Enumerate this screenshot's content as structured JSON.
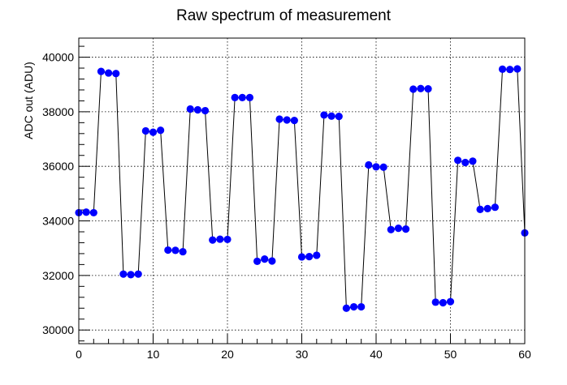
{
  "chart_data": {
    "type": "line",
    "title": "Raw spectrum of measurement",
    "xlabel": "",
    "ylabel": "ADC out (ADU)",
    "xlim": [
      0,
      60
    ],
    "ylim": [
      29500,
      40700
    ],
    "x_ticks": [
      "0",
      "10",
      "20",
      "30",
      "40",
      "50",
      "60"
    ],
    "y_ticks": [
      "30000",
      "32000",
      "34000",
      "36000",
      "38000",
      "40000"
    ],
    "grid": true,
    "marker_color": "#0000ff",
    "line_color": "#000000",
    "series": [
      {
        "x": [
          0,
          1,
          2,
          3,
          4,
          5,
          6,
          7,
          8,
          9,
          10,
          11,
          12,
          13,
          14,
          15,
          16,
          17,
          18,
          19,
          20,
          21,
          22,
          23,
          24,
          25,
          26,
          27,
          28,
          29,
          30,
          31,
          32,
          33,
          34,
          35,
          36,
          37,
          38,
          39,
          40,
          41,
          42,
          43,
          44,
          45,
          46,
          47,
          48,
          49,
          50,
          51,
          52,
          53,
          54,
          55,
          56,
          57,
          58,
          59,
          60
        ],
        "values": [
          34300,
          34320,
          34300,
          39480,
          39420,
          39400,
          32050,
          32030,
          32050,
          37300,
          37250,
          37320,
          32930,
          32920,
          32870,
          38100,
          38070,
          38040,
          33300,
          33330,
          33320,
          38520,
          38520,
          38520,
          32520,
          32600,
          32530,
          37730,
          37700,
          37680,
          32680,
          32690,
          32740,
          37880,
          37840,
          37830,
          30800,
          30850,
          30850,
          36050,
          35980,
          35970,
          33680,
          33730,
          33700,
          38830,
          38850,
          38840,
          31020,
          31000,
          31040,
          36220,
          36140,
          36190,
          34420,
          34450,
          34500,
          39560,
          39550,
          39570,
          33560
        ]
      }
    ]
  }
}
